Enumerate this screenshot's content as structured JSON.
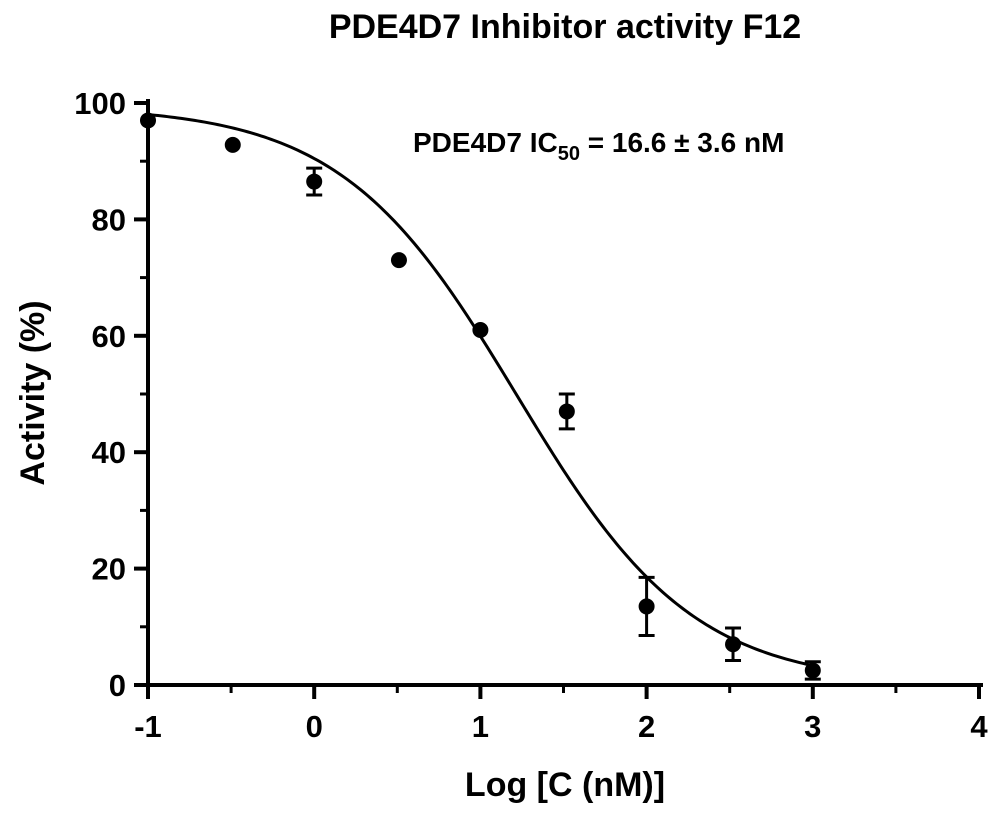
{
  "chart_data": {
    "type": "scatter",
    "title": "PDE4D7 Inhibitor activity F12",
    "xlabel": "Log [C (nM)]",
    "ylabel": "Activity (%)",
    "xlim": [
      -1,
      4
    ],
    "ylim": [
      0,
      100
    ],
    "xticks": [
      -1,
      0,
      1,
      2,
      3,
      4
    ],
    "xtick_labels": [
      "-1",
      "0",
      "1",
      "2",
      "3",
      "4"
    ],
    "yticks": [
      0,
      20,
      40,
      60,
      80,
      100
    ],
    "ytick_labels": [
      "0",
      "20",
      "40",
      "60",
      "80",
      "100"
    ],
    "minor_ticks": true,
    "grid": false,
    "annotation": {
      "prefix": "PDE4D7 IC",
      "subscript": "50",
      "suffix": " = 16.6 ± 3.6 nM",
      "placement": "top-right"
    },
    "points": [
      {
        "x": -1.0,
        "y": 97.0,
        "err": 0
      },
      {
        "x": -0.49,
        "y": 92.8,
        "err": 0
      },
      {
        "x": 0.0,
        "y": 86.5,
        "err": 2.3
      },
      {
        "x": 0.51,
        "y": 73.0,
        "err": 0
      },
      {
        "x": 1.0,
        "y": 61.0,
        "err": 0
      },
      {
        "x": 1.52,
        "y": 47.0,
        "err": 3.0
      },
      {
        "x": 2.0,
        "y": 13.5,
        "err": 5.0
      },
      {
        "x": 2.52,
        "y": 7.0,
        "err": 2.8
      },
      {
        "x": 3.0,
        "y": 2.5,
        "err": 1.5
      }
    ],
    "fit": {
      "model": "four-parameter logistic",
      "top": 99.5,
      "bottom": 0,
      "log_ic50": 1.22,
      "hill_slope": -0.82,
      "x_range": [
        -1,
        3
      ]
    }
  }
}
